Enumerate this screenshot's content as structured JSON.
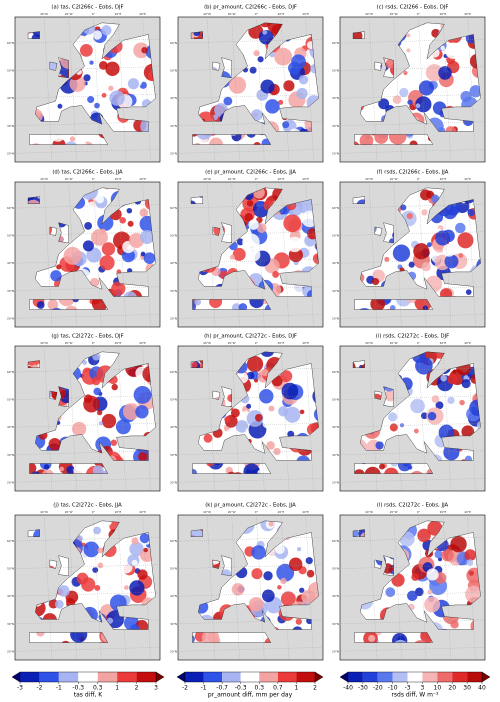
{
  "panels": [
    {
      "title": "(a) tas, C2I266c - Eobs, DJF",
      "colorbar": 0
    },
    {
      "title": "(b) pr_amount, C2I266c - Eobs, DJF",
      "colorbar": 1
    },
    {
      "title": "(c) rsds, C2I266 - Eobs, DJF",
      "colorbar": 2
    },
    {
      "title": "(d) tas, C2I266c - Eobs, JJA",
      "colorbar": 0
    },
    {
      "title": "(e) pr_amount, C2I266c - Eobs, JJA",
      "colorbar": 1
    },
    {
      "title": "(f) rsds, C2I266c - Eobs, JJA",
      "colorbar": 2
    },
    {
      "title": "(g) tas, C2I272c - Eobs, DJF",
      "colorbar": 0
    },
    {
      "title": "(h) pr_amount, C2I272c - Eobs, DJF",
      "colorbar": 1
    },
    {
      "title": "(i) rsds, C2I272c - Eobs, DJF",
      "colorbar": 2
    },
    {
      "title": "(j) tas, C2I272c - Eobs, JJA",
      "colorbar": 0
    },
    {
      "title": "(k) pr_amount, C2I272c - Eobs, JJA",
      "colorbar": 1
    },
    {
      "title": "(l) rsds, C2I272c - Eobs, JJA",
      "colorbar": 2
    }
  ],
  "map_axes": {
    "lon_labels": [
      "40°W",
      "20°W",
      "0°",
      "20°E",
      "40°E"
    ],
    "lat_labels": [
      "60°N",
      "50°N",
      "40°N",
      "30°N",
      "20°N"
    ]
  },
  "colorbars": [
    {
      "label": "tas diff, K",
      "ticks": [
        -3,
        -2,
        -1,
        -0.3,
        0.3,
        1,
        2,
        3
      ],
      "colors": [
        "#0a1fb5",
        "#2f52e8",
        "#a7b4f2",
        "#ffffff",
        "#f4a3a3",
        "#eb3b3b",
        "#c40d0d"
      ],
      "under": "#00006e",
      "over": "#7a0000"
    },
    {
      "label": "pr_amount diff, mm per day",
      "ticks": [
        -2,
        -1,
        -0.7,
        -0.3,
        0.3,
        0.7,
        1,
        2
      ],
      "colors": [
        "#0a1fb5",
        "#2f52e8",
        "#a7b4f2",
        "#ffffff",
        "#f4a3a3",
        "#eb3b3b",
        "#c40d0d"
      ],
      "under": "#00006e",
      "over": "#7a0000"
    },
    {
      "label": "rsds diff, W m⁻²",
      "ticks": [
        -40,
        -30,
        -20,
        -10,
        -3,
        3,
        10,
        20,
        30,
        40
      ],
      "colors": [
        "#0a1fb5",
        "#2340d8",
        "#5a78ee",
        "#b3bff4",
        "#ffffff",
        "#f6b4b4",
        "#ef6a6a",
        "#e02a2a",
        "#b80b0b"
      ],
      "under": "#00006e",
      "over": "#7a0000"
    }
  ]
}
